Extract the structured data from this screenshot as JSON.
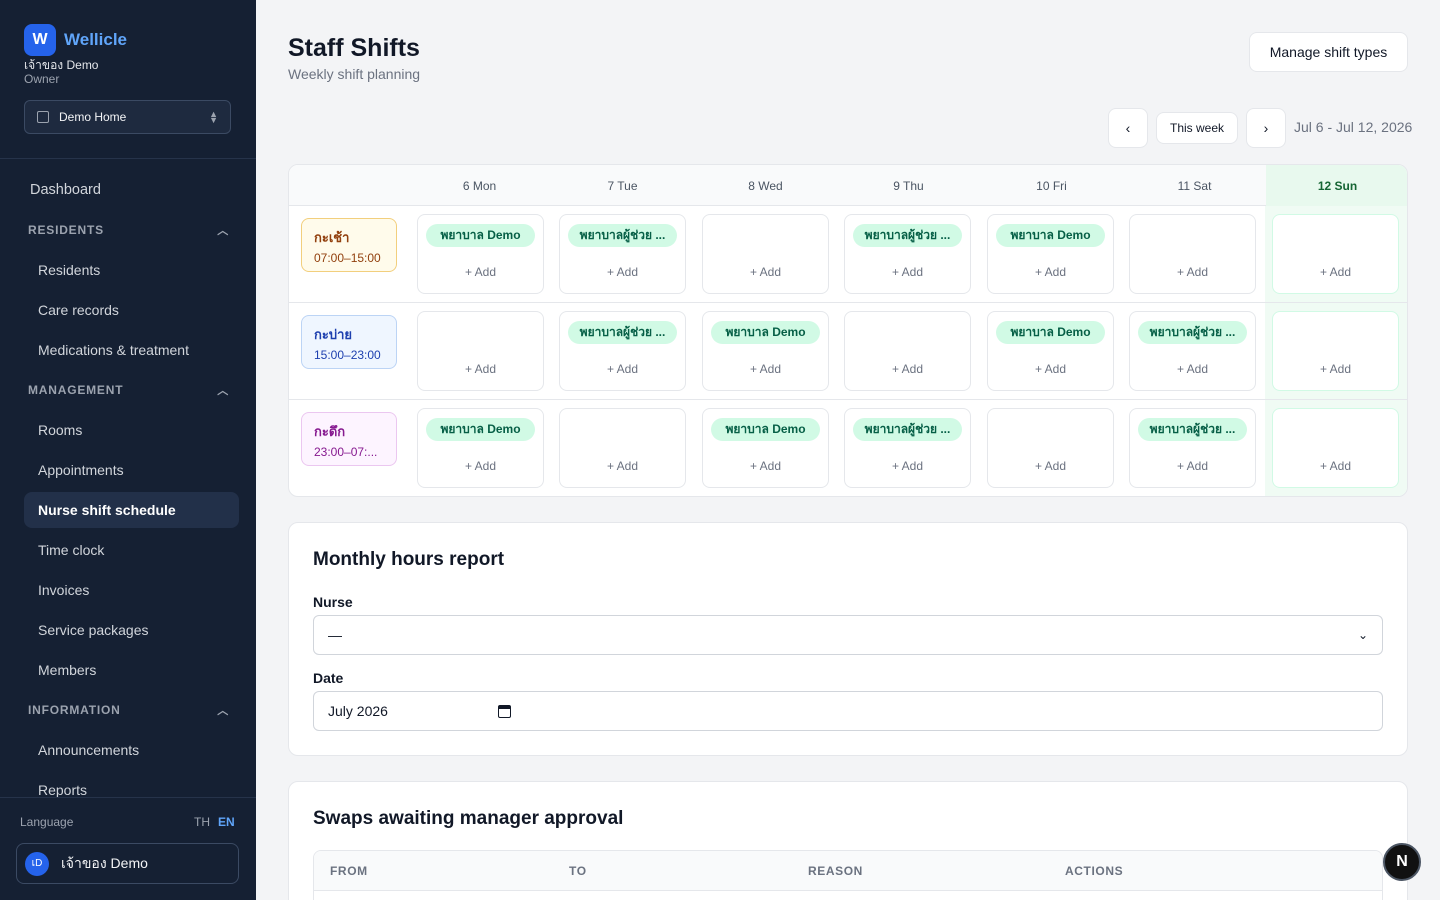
{
  "app": {
    "brand_initial": "W",
    "brand_name": "Wellicle",
    "user_name": "เจ้าของ Demo",
    "user_role": "Owner",
    "home_select": "Demo Home"
  },
  "sidebar": {
    "dashboard": "Dashboard",
    "residents_section": "RESIDENTS",
    "residents": "Residents",
    "care_records": "Care records",
    "medications": "Medications & treatment",
    "management_section": "MANAGEMENT",
    "rooms": "Rooms",
    "appointments": "Appointments",
    "nurse_shift": "Nurse shift schedule",
    "time_clock": "Time clock",
    "invoices": "Invoices",
    "service_packages": "Service packages",
    "members": "Members",
    "information_section": "INFORMATION",
    "announcements": "Announcements",
    "reports": "Reports"
  },
  "footer": {
    "language_label": "Language",
    "lang_th": "TH",
    "lang_en": "EN",
    "avatar_initials": "เD",
    "user_name": "เจ้าของ Demo"
  },
  "header": {
    "title": "Staff Shifts",
    "subtitle": "Weekly shift planning",
    "manage_button": "Manage shift types",
    "prev_icon": "‹",
    "next_icon": "›",
    "this_week": "This week",
    "range": "Jul 6 - Jul 12, 2026"
  },
  "schedule": {
    "days": [
      "6 Mon",
      "7 Tue",
      "8 Wed",
      "9 Thu",
      "10 Fri",
      "11 Sat",
      "12 Sun"
    ],
    "today_index": 6,
    "add_label": "+ Add",
    "shifts": [
      {
        "name": "กะเช้า",
        "time": "07:00–15:00",
        "style": "morning",
        "assignments": [
          "พยาบาล Demo",
          "พยาบาลผู้ช่วย ...",
          "",
          "พยาบาลผู้ช่วย ...",
          "พยาบาล Demo",
          "",
          ""
        ]
      },
      {
        "name": "กะบ่าย",
        "time": "15:00–23:00",
        "style": "afternoon",
        "assignments": [
          "",
          "พยาบาลผู้ช่วย ...",
          "พยาบาล Demo",
          "",
          "พยาบาล Demo",
          "พยาบาลผู้ช่วย ...",
          ""
        ]
      },
      {
        "name": "กะดึก",
        "time": "23:00–07:...",
        "style": "night",
        "assignments": [
          "พยาบาล Demo",
          "",
          "พยาบาล Demo",
          "พยาบาลผู้ช่วย ...",
          "",
          "พยาบาลผู้ช่วย ...",
          ""
        ]
      }
    ]
  },
  "report": {
    "title": "Monthly hours report",
    "nurse_label": "Nurse",
    "nurse_value": "—",
    "date_label": "Date",
    "date_value": "July 2026"
  },
  "swaps": {
    "title": "Swaps awaiting manager approval",
    "col_from": "FROM",
    "col_to": "TO",
    "col_reason": "REASON",
    "col_actions": "ACTIONS"
  },
  "fab_label": "N"
}
